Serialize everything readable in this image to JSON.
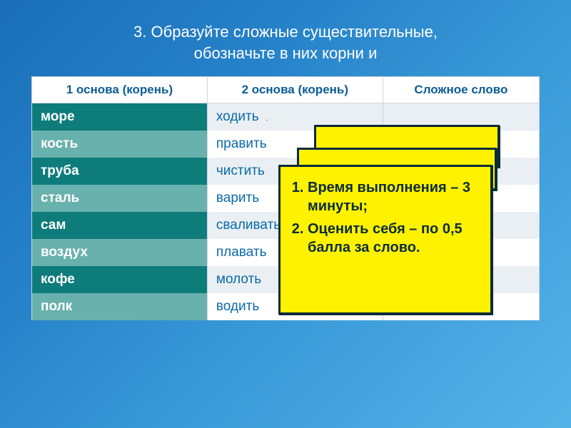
{
  "title_line1": "3. Образуйте сложные существительные,",
  "title_line2": "обозначьте в них корни и",
  "headers": {
    "h1": "1 основа (корень)",
    "h2": "2 основа (корень)",
    "h3": "Сложное слово"
  },
  "rows": [
    {
      "c1": "море",
      "c2": "ходить"
    },
    {
      "c1": "кость",
      "c2": "править"
    },
    {
      "c1": "труба",
      "c2": "чистить"
    },
    {
      "c1": "сталь",
      "c2": "варить"
    },
    {
      "c1": "сам",
      "c2": "сваливать"
    },
    {
      "c1": "воздух",
      "c2": "плавать"
    },
    {
      "c1": "кофе",
      "c2": "молоть"
    },
    {
      "c1": "полк",
      "c2": "водить"
    }
  ],
  "overlay": {
    "item1": "Время выполнения – 3 минуты;",
    "item2": "Оценить себя – по 0,5 балла за слово."
  },
  "styles": {
    "bg_gradient_start": "#1a6fb8",
    "bg_gradient_end": "#55b3e8",
    "header_text_color": "#0b5c96",
    "col1_dark_bg": "#0e7c7b",
    "col1_light_bg": "#69b1ad",
    "col2_text_color": "#0b6aa8",
    "stripe_light": "#ffffff",
    "stripe_dark": "#e9eff2",
    "overlay_bg": "#fff200",
    "overlay_border": "#0b2b3a",
    "title_fontsize": 22,
    "cell_fontsize": 19,
    "overlay_fontsize": 20
  }
}
